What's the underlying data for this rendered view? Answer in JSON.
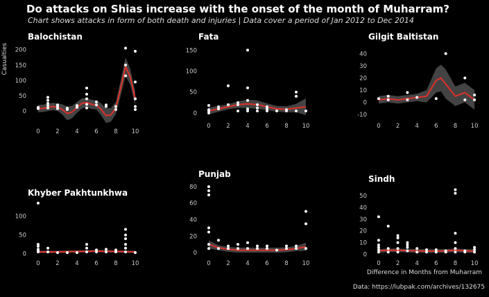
{
  "title": "Do attacks on Shias increase with the onset of the month of Muharram?",
  "subtitle": "Chart shows attacks in form of both death and injuries | Data cover a period of Jan 2012  to Dec 2014",
  "ylabel": "Casualties",
  "xlabel": "Difference in Months from Muharram",
  "caption": "Data: https://lubpak.com/archives/132675",
  "colors": {
    "background": "#000000",
    "points": "#ffffff",
    "line": "#e0302a",
    "band": "#4a4a4a"
  },
  "chart_data": [
    {
      "type": "scatter",
      "title": "Balochistan",
      "xlim": [
        -0.5,
        10.5
      ],
      "ylim": [
        -45,
        215
      ],
      "xticks": [
        0,
        2,
        4,
        6,
        8,
        10
      ],
      "yticks": [
        0,
        50,
        100,
        150,
        200
      ],
      "points": [
        [
          0,
          8
        ],
        [
          0,
          12
        ],
        [
          1,
          10
        ],
        [
          1,
          18
        ],
        [
          1,
          25
        ],
        [
          1,
          35
        ],
        [
          1,
          45
        ],
        [
          2,
          8
        ],
        [
          2,
          15
        ],
        [
          2,
          20
        ],
        [
          3,
          5
        ],
        [
          3,
          10
        ],
        [
          4,
          12
        ],
        [
          4,
          18
        ],
        [
          5,
          10
        ],
        [
          5,
          22
        ],
        [
          5,
          40
        ],
        [
          5,
          55
        ],
        [
          5,
          75
        ],
        [
          6,
          20
        ],
        [
          6,
          30
        ],
        [
          7,
          15
        ],
        [
          7,
          20
        ],
        [
          8,
          5
        ],
        [
          8,
          15
        ],
        [
          9,
          115
        ],
        [
          9,
          150
        ],
        [
          9,
          205
        ],
        [
          10,
          5
        ],
        [
          10,
          15
        ],
        [
          10,
          40
        ],
        [
          10,
          95
        ],
        [
          10,
          195
        ]
      ],
      "fit": [
        [
          0,
          8
        ],
        [
          0.5,
          9
        ],
        [
          1,
          12
        ],
        [
          1.5,
          15
        ],
        [
          2,
          13
        ],
        [
          2.5,
          5
        ],
        [
          3,
          -8
        ],
        [
          3.5,
          -3
        ],
        [
          4,
          12
        ],
        [
          4.5,
          25
        ],
        [
          5,
          28
        ],
        [
          5.5,
          22
        ],
        [
          6,
          20
        ],
        [
          6.5,
          5
        ],
        [
          7,
          -15
        ],
        [
          7.5,
          -12
        ],
        [
          8,
          10
        ],
        [
          8.5,
          75
        ],
        [
          9,
          145
        ],
        [
          9.5,
          110
        ],
        [
          10,
          40
        ]
      ],
      "band": [
        [
          0,
          12
        ],
        [
          1,
          12
        ],
        [
          2,
          12
        ],
        [
          3,
          22
        ],
        [
          4,
          18
        ],
        [
          5,
          15
        ],
        [
          6,
          15
        ],
        [
          7,
          24
        ],
        [
          8,
          20
        ],
        [
          9,
          30
        ],
        [
          10,
          22
        ]
      ]
    },
    {
      "type": "scatter",
      "title": "Fata",
      "xlim": [
        -0.5,
        10.5
      ],
      "ylim": [
        -15,
        162
      ],
      "xticks": [
        0,
        2,
        4,
        6,
        8,
        10
      ],
      "yticks": [
        0,
        50,
        100,
        150
      ],
      "points": [
        [
          0,
          0
        ],
        [
          0,
          5
        ],
        [
          0,
          8
        ],
        [
          0,
          18
        ],
        [
          1,
          10
        ],
        [
          1,
          15
        ],
        [
          2,
          20
        ],
        [
          2,
          65
        ],
        [
          3,
          5
        ],
        [
          3,
          20
        ],
        [
          3,
          25
        ],
        [
          4,
          5
        ],
        [
          4,
          10
        ],
        [
          4,
          30
        ],
        [
          4,
          60
        ],
        [
          4,
          150
        ],
        [
          5,
          5
        ],
        [
          5,
          12
        ],
        [
          5,
          20
        ],
        [
          6,
          5
        ],
        [
          6,
          10
        ],
        [
          6,
          15
        ],
        [
          7,
          5
        ],
        [
          8,
          5
        ],
        [
          8,
          8
        ],
        [
          9,
          5
        ],
        [
          9,
          40
        ],
        [
          9,
          50
        ],
        [
          10,
          5
        ]
      ],
      "fit": [
        [
          0,
          5
        ],
        [
          1,
          10
        ],
        [
          2,
          15
        ],
        [
          3,
          20
        ],
        [
          4,
          22
        ],
        [
          5,
          20
        ],
        [
          6,
          15
        ],
        [
          7,
          10
        ],
        [
          8,
          9
        ],
        [
          9,
          12
        ],
        [
          10,
          15
        ]
      ],
      "band": [
        [
          0,
          8
        ],
        [
          1,
          7
        ],
        [
          2,
          6
        ],
        [
          3,
          8
        ],
        [
          4,
          10
        ],
        [
          5,
          10
        ],
        [
          6,
          8
        ],
        [
          7,
          7
        ],
        [
          8,
          7
        ],
        [
          9,
          10
        ],
        [
          10,
          20
        ]
      ]
    },
    {
      "type": "scatter",
      "title": "Gilgit Baltistan",
      "xlim": [
        -0.5,
        10.5
      ],
      "ylim": [
        -14,
        47
      ],
      "xticks": [
        0,
        2,
        4,
        6,
        8,
        10
      ],
      "yticks": [
        -10,
        0,
        10,
        20,
        30,
        40
      ],
      "points": [
        [
          0,
          3
        ],
        [
          1,
          2
        ],
        [
          1,
          5
        ],
        [
          3,
          2
        ],
        [
          3,
          8
        ],
        [
          4,
          4
        ],
        [
          6,
          3
        ],
        [
          7,
          40
        ],
        [
          9,
          2
        ],
        [
          9,
          20
        ],
        [
          10,
          2
        ],
        [
          10,
          6
        ]
      ],
      "fit": [
        [
          0,
          2
        ],
        [
          1,
          3
        ],
        [
          2,
          2
        ],
        [
          3,
          3
        ],
        [
          4,
          4
        ],
        [
          5,
          5
        ],
        [
          6,
          18
        ],
        [
          6.5,
          20
        ],
        [
          7,
          15
        ],
        [
          8,
          5
        ],
        [
          9,
          8
        ],
        [
          10,
          2
        ]
      ],
      "band": [
        [
          0,
          3
        ],
        [
          1,
          3
        ],
        [
          2,
          3
        ],
        [
          3,
          3
        ],
        [
          4,
          3
        ],
        [
          5,
          5
        ],
        [
          6,
          10
        ],
        [
          7,
          12
        ],
        [
          8,
          8
        ],
        [
          9,
          8
        ],
        [
          10,
          8
        ]
      ]
    },
    {
      "type": "scatter",
      "title": "Khyber Pakhtunkhwa",
      "xlim": [
        -0.5,
        10.5
      ],
      "ylim": [
        -8,
        140
      ],
      "xticks": [
        0,
        2,
        4,
        6,
        8,
        10
      ],
      "yticks": [
        0,
        50,
        100
      ],
      "points": [
        [
          0,
          5
        ],
        [
          0,
          8
        ],
        [
          0,
          12
        ],
        [
          0,
          20
        ],
        [
          0,
          25
        ],
        [
          0,
          135
        ],
        [
          1,
          5
        ],
        [
          1,
          15
        ],
        [
          2,
          3
        ],
        [
          3,
          3
        ],
        [
          4,
          3
        ],
        [
          5,
          5
        ],
        [
          5,
          15
        ],
        [
          5,
          25
        ],
        [
          6,
          5
        ],
        [
          6,
          10
        ],
        [
          7,
          5
        ],
        [
          7,
          12
        ],
        [
          8,
          5
        ],
        [
          8,
          10
        ],
        [
          9,
          5
        ],
        [
          9,
          15
        ],
        [
          9,
          25
        ],
        [
          9,
          40
        ],
        [
          9,
          50
        ],
        [
          9,
          65
        ],
        [
          10,
          3
        ]
      ],
      "fit": [
        [
          0,
          5
        ],
        [
          2,
          5
        ],
        [
          4,
          6
        ],
        [
          6,
          7
        ],
        [
          8,
          6
        ],
        [
          10,
          5
        ]
      ],
      "band": [
        [
          0,
          3
        ],
        [
          2,
          3
        ],
        [
          4,
          3
        ],
        [
          6,
          3
        ],
        [
          8,
          3
        ],
        [
          10,
          3
        ]
      ]
    },
    {
      "type": "scatter",
      "title": "Punjab",
      "xlim": [
        -0.5,
        10.5
      ],
      "ylim": [
        -5,
        85
      ],
      "xticks": [
        0,
        2,
        4,
        6,
        8,
        10
      ],
      "yticks": [
        0,
        20,
        40,
        60,
        80
      ],
      "points": [
        [
          0,
          5
        ],
        [
          0,
          10
        ],
        [
          0,
          25
        ],
        [
          0,
          30
        ],
        [
          0,
          70
        ],
        [
          0,
          75
        ],
        [
          0,
          80
        ],
        [
          1,
          5
        ],
        [
          1,
          15
        ],
        [
          2,
          5
        ],
        [
          2,
          8
        ],
        [
          3,
          5
        ],
        [
          3,
          10
        ],
        [
          4,
          5
        ],
        [
          4,
          12
        ],
        [
          5,
          5
        ],
        [
          5,
          8
        ],
        [
          6,
          5
        ],
        [
          6,
          8
        ],
        [
          7,
          3
        ],
        [
          8,
          5
        ],
        [
          8,
          8
        ],
        [
          9,
          5
        ],
        [
          9,
          8
        ],
        [
          10,
          5
        ],
        [
          10,
          35
        ],
        [
          10,
          50
        ]
      ],
      "fit": [
        [
          0,
          10
        ],
        [
          1,
          6
        ],
        [
          2,
          4
        ],
        [
          3,
          3
        ],
        [
          4,
          3
        ],
        [
          5,
          3
        ],
        [
          6,
          3
        ],
        [
          7,
          3
        ],
        [
          8,
          3.5
        ],
        [
          9,
          5
        ],
        [
          10,
          7
        ]
      ],
      "band": [
        [
          0,
          5
        ],
        [
          1,
          3
        ],
        [
          2,
          3
        ],
        [
          3,
          3
        ],
        [
          4,
          3
        ],
        [
          5,
          3
        ],
        [
          6,
          3
        ],
        [
          7,
          3
        ],
        [
          8,
          3
        ],
        [
          9,
          3
        ],
        [
          10,
          5
        ]
      ]
    },
    {
      "type": "scatter",
      "title": "Sindh",
      "xlim": [
        -0.5,
        10.5
      ],
      "ylim": [
        -2,
        57
      ],
      "xticks": [
        0,
        2,
        4,
        6,
        8,
        10
      ],
      "yticks": [
        0,
        10,
        20,
        30,
        40,
        50
      ],
      "points": [
        [
          0,
          2
        ],
        [
          0,
          4
        ],
        [
          0,
          6
        ],
        [
          0,
          8
        ],
        [
          0,
          12
        ],
        [
          0,
          32
        ],
        [
          1,
          2
        ],
        [
          1,
          5
        ],
        [
          1,
          24
        ],
        [
          2,
          2
        ],
        [
          2,
          5
        ],
        [
          2,
          10
        ],
        [
          2,
          14
        ],
        [
          2,
          16
        ],
        [
          3,
          3
        ],
        [
          3,
          6
        ],
        [
          3,
          8
        ],
        [
          3,
          10
        ],
        [
          4,
          2
        ],
        [
          4,
          5
        ],
        [
          5,
          2
        ],
        [
          5,
          4
        ],
        [
          6,
          2
        ],
        [
          6,
          4
        ],
        [
          7,
          2
        ],
        [
          7,
          3
        ],
        [
          8,
          2
        ],
        [
          8,
          5
        ],
        [
          8,
          10
        ],
        [
          8,
          18
        ],
        [
          8,
          52
        ],
        [
          8,
          55
        ],
        [
          9,
          2
        ],
        [
          9,
          3
        ],
        [
          10,
          2
        ],
        [
          10,
          4
        ],
        [
          10,
          6
        ]
      ],
      "fit": [
        [
          0,
          3
        ],
        [
          1,
          3.5
        ],
        [
          2,
          3.5
        ],
        [
          3,
          3.2
        ],
        [
          4,
          3
        ],
        [
          5,
          2.8
        ],
        [
          6,
          2.8
        ],
        [
          7,
          3
        ],
        [
          8,
          3.5
        ],
        [
          9,
          3
        ],
        [
          10,
          2.8
        ]
      ],
      "band": [
        [
          0,
          1.5
        ],
        [
          2,
          1.5
        ],
        [
          4,
          1.5
        ],
        [
          6,
          1.5
        ],
        [
          8,
          1.5
        ],
        [
          10,
          1.5
        ]
      ]
    }
  ]
}
